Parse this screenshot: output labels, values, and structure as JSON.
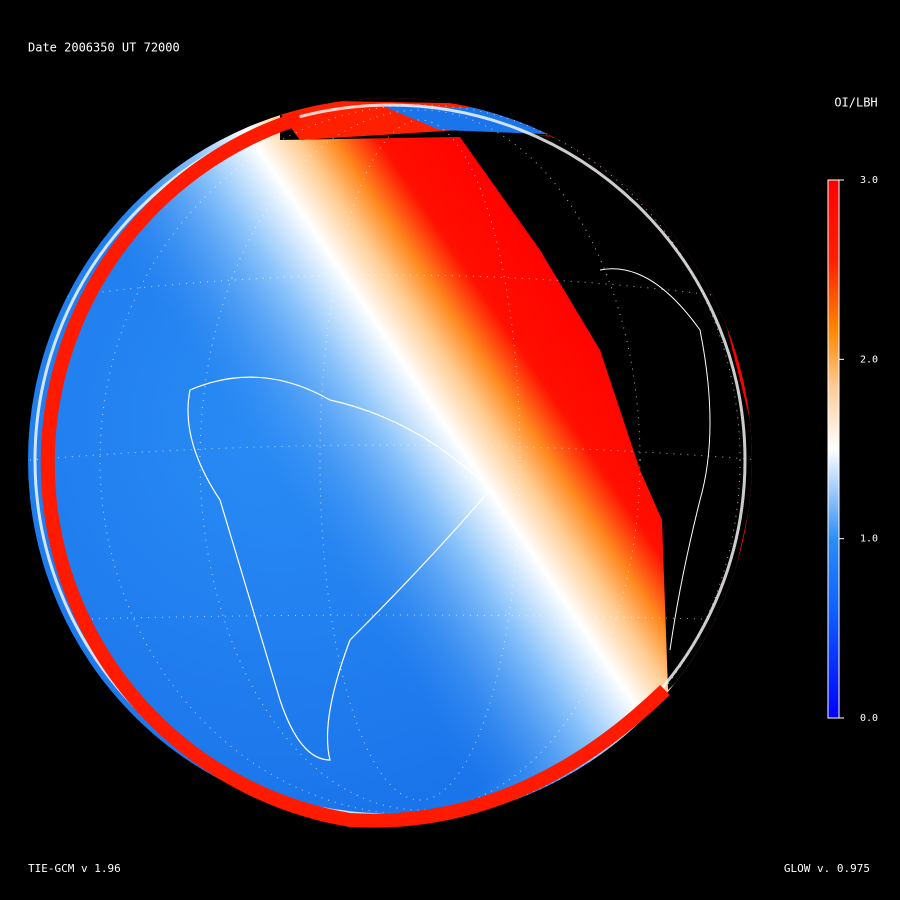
{
  "header": {
    "title": "Date 2006350  UT 72000"
  },
  "colorbar": {
    "label": "OI/LBH",
    "lim": [
      0,
      3
    ],
    "ticks": [
      {
        "value": 3,
        "label": "3.0"
      },
      {
        "value": 2,
        "label": "2.0"
      },
      {
        "value": 1,
        "label": "1.0"
      },
      {
        "value": 0,
        "label": "0.0"
      }
    ]
  },
  "footer": {
    "left": "TIE-GCM v 1.96",
    "right": "GLOW v. 0.975"
  }
}
